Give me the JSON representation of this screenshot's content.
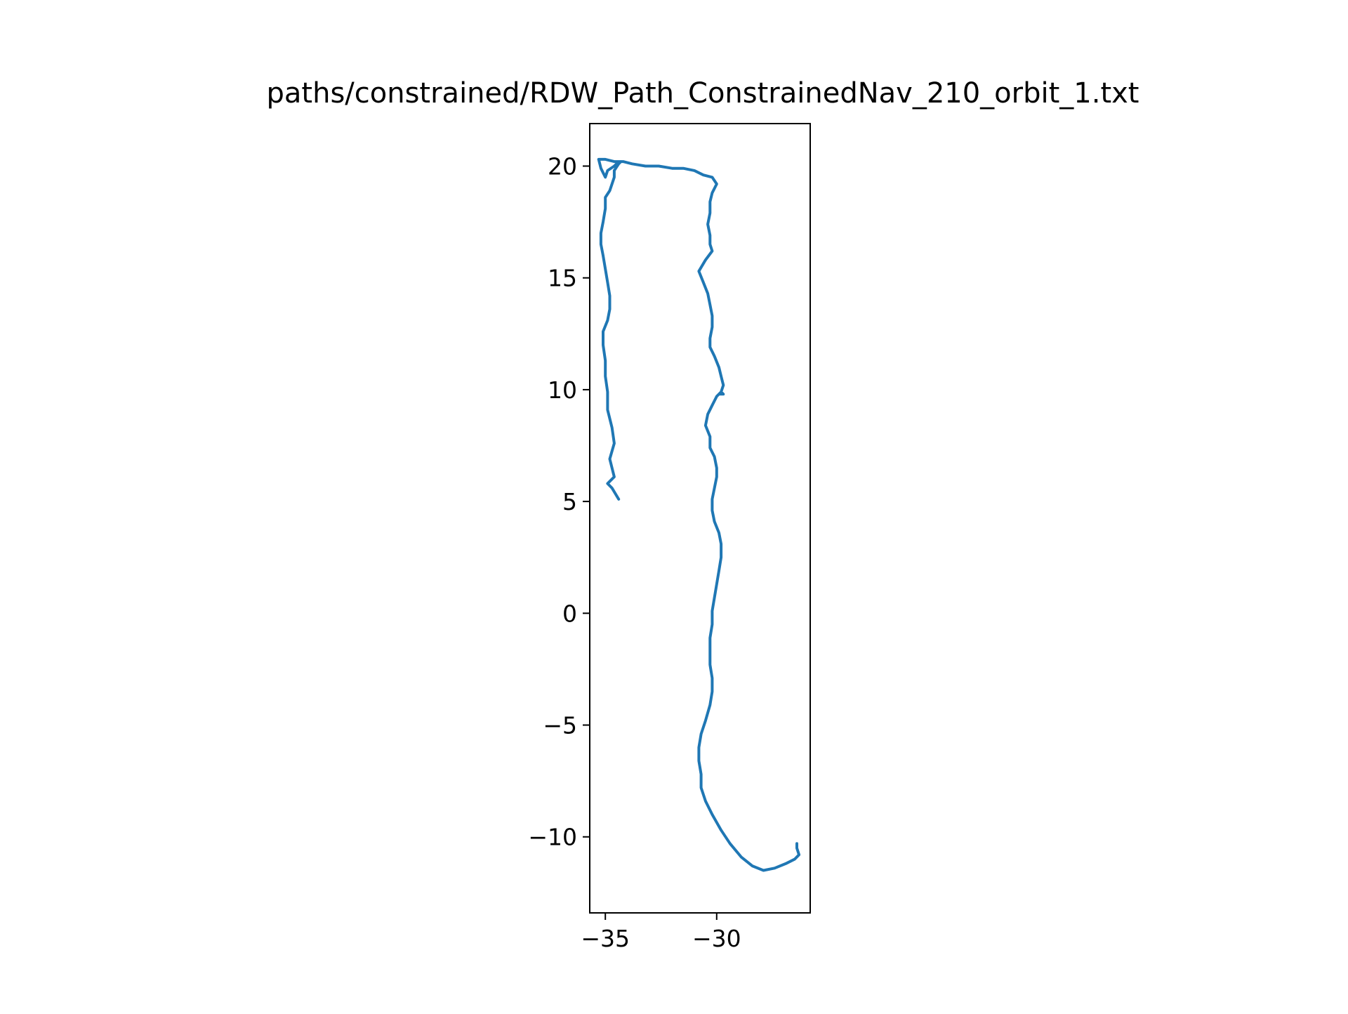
{
  "chart_data": {
    "type": "line",
    "title": "paths/constrained/RDW_Path_ConstrainedNav_210_orbit_1.txt",
    "xlabel": "",
    "ylabel": "",
    "xlim": [
      -35.7,
      -25.8
    ],
    "ylim": [
      -13.4,
      21.9
    ],
    "grid": false,
    "legend": "none",
    "xticks": [
      -35,
      -30
    ],
    "xtick_labels": [
      "−35",
      "−30"
    ],
    "yticks": [
      -10,
      -5,
      0,
      5,
      10,
      15,
      20
    ],
    "ytick_labels": [
      "−10",
      "−5",
      "0",
      "5",
      "10",
      "15",
      "20"
    ],
    "series": [
      {
        "color": "#1f77b4",
        "x": [
          -34.4,
          -34.7,
          -34.9,
          -34.6,
          -34.7,
          -34.8,
          -34.6,
          -34.7,
          -34.9,
          -34.9,
          -35.0,
          -35.0,
          -35.1,
          -35.1,
          -34.9,
          -34.8,
          -34.8,
          -34.9,
          -35.0,
          -35.1,
          -35.2,
          -35.2,
          -35.1,
          -35.0,
          -35.0,
          -34.8,
          -34.7,
          -34.6,
          -34.6,
          -34.4,
          -34.3,
          -34.5,
          -34.6,
          -34.9,
          -35.0,
          -35.2,
          -35.3,
          -35.0,
          -34.6,
          -34.2,
          -33.8,
          -33.2,
          -32.6,
          -32.0,
          -31.5,
          -31.0,
          -30.6,
          -30.2,
          -30.0,
          -30.2,
          -30.3,
          -30.3,
          -30.4,
          -30.3,
          -30.3,
          -30.2,
          -30.5,
          -30.8,
          -30.6,
          -30.4,
          -30.3,
          -30.2,
          -30.2,
          -30.3,
          -30.3,
          -30.1,
          -29.9,
          -29.8,
          -29.7,
          -29.8,
          -29.9,
          -29.7,
          -29.8,
          -30.0,
          -30.2,
          -30.4,
          -30.5,
          -30.3,
          -30.3,
          -30.1,
          -30.0,
          -30.0,
          -30.1,
          -30.2,
          -30.2,
          -30.1,
          -29.9,
          -29.8,
          -29.8,
          -29.9,
          -30.0,
          -30.1,
          -30.2,
          -30.2,
          -30.3,
          -30.3,
          -30.3,
          -30.2,
          -30.2,
          -30.3,
          -30.5,
          -30.7,
          -30.8,
          -30.8,
          -30.7,
          -30.7,
          -30.5,
          -30.2,
          -29.8,
          -29.4,
          -28.9,
          -28.4,
          -27.9,
          -27.4,
          -26.9,
          -26.5,
          -26.3,
          -26.4,
          -26.4
        ],
        "y": [
          5.1,
          5.6,
          5.8,
          6.1,
          6.5,
          6.9,
          7.6,
          8.3,
          9.1,
          9.9,
          10.6,
          11.3,
          12.0,
          12.6,
          13.1,
          13.6,
          14.2,
          14.8,
          15.4,
          16.0,
          16.5,
          17.0,
          17.5,
          18.1,
          18.6,
          18.9,
          19.2,
          19.5,
          19.8,
          20.1,
          20.2,
          20.1,
          20.0,
          19.8,
          19.5,
          19.9,
          20.3,
          20.3,
          20.2,
          20.2,
          20.1,
          20.0,
          20.0,
          19.9,
          19.9,
          19.8,
          19.6,
          19.5,
          19.2,
          18.8,
          18.4,
          17.9,
          17.4,
          16.9,
          16.5,
          16.2,
          15.8,
          15.3,
          14.8,
          14.3,
          13.8,
          13.3,
          12.8,
          12.3,
          11.9,
          11.5,
          11.0,
          10.6,
          10.2,
          9.9,
          9.8,
          9.8,
          9.9,
          9.7,
          9.3,
          8.9,
          8.4,
          7.9,
          7.4,
          7.0,
          6.5,
          6.1,
          5.6,
          5.1,
          4.6,
          4.1,
          3.6,
          3.1,
          2.5,
          1.9,
          1.3,
          0.7,
          0.1,
          -0.5,
          -1.1,
          -1.7,
          -2.3,
          -2.9,
          -3.5,
          -4.1,
          -4.8,
          -5.4,
          -6.0,
          -6.6,
          -7.2,
          -7.8,
          -8.4,
          -9.0,
          -9.7,
          -10.3,
          -10.9,
          -11.3,
          -11.5,
          -11.4,
          -11.2,
          -11.0,
          -10.8,
          -10.5,
          -10.3
        ]
      }
    ]
  }
}
